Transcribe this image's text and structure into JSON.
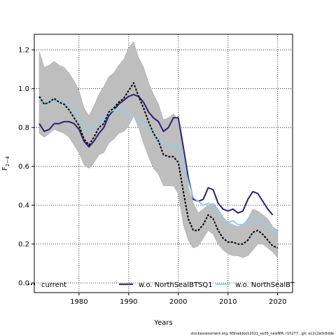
{
  "chart_data": {
    "type": "line",
    "xlabel": "Years",
    "ylabel_main": "F",
    "ylabel_sub": "2−4",
    "xlim": [
      1971,
      2023
    ],
    "ylim": [
      -0.05,
      1.28
    ],
    "xticks": [
      1980,
      1990,
      2000,
      2010,
      2020
    ],
    "yticks": [
      0.0,
      0.2,
      0.4,
      0.6,
      0.8,
      1.0,
      1.2
    ],
    "ytick_labels": [
      "0.0",
      "0.2",
      "0.4",
      "0.6",
      "0.8",
      "1.0",
      "1.2"
    ],
    "grid": true,
    "legend_position": "bottom",
    "legend": [
      {
        "label": "current",
        "key": "current"
      },
      {
        "label": "w.o. NorthSealBTSQ1",
        "key": "btsq1"
      },
      {
        "label": "w.o. NorthSealBT",
        "key": "bt"
      }
    ],
    "colors": {
      "band": "#bebebe",
      "band_edge": "#a6a6a6",
      "current": "#000000",
      "btsq1": "#2e1e7a",
      "bt": "#8ecff0"
    },
    "caption": "stockassessment.org, NShaddock2021_ex05_newNM, r15277 , git: ec2c2a0c6dde",
    "band": {
      "x": [
        1972,
        1973,
        1974,
        1975,
        1976,
        1977,
        1978,
        1979,
        1980,
        1981,
        1982,
        1983,
        1984,
        1985,
        1986,
        1987,
        1988,
        1989,
        1990,
        1991,
        1992,
        1993,
        1994,
        1995,
        1996,
        1997,
        1998,
        1999,
        2000,
        2001,
        2002,
        2003,
        2004,
        2005,
        2006,
        2007,
        2008,
        2009,
        2010,
        2011,
        2012,
        2013,
        2014,
        2015,
        2016,
        2017,
        2018,
        2019,
        2020
      ],
      "upper": [
        1.19,
        1.11,
        1.12,
        1.14,
        1.12,
        1.11,
        1.08,
        1.04,
        0.99,
        0.9,
        0.86,
        0.91,
        0.97,
        1.01,
        1.06,
        1.08,
        1.12,
        1.15,
        1.21,
        1.24,
        1.16,
        1.11,
        1.03,
        0.97,
        0.92,
        0.84,
        0.85,
        0.87,
        0.84,
        0.66,
        0.49,
        0.41,
        0.36,
        0.38,
        0.4,
        0.41,
        0.38,
        0.34,
        0.31,
        0.3,
        0.29,
        0.3,
        0.33,
        0.38,
        0.37,
        0.35,
        0.33,
        0.29,
        0.27
      ],
      "lower": [
        0.77,
        0.75,
        0.77,
        0.79,
        0.78,
        0.77,
        0.75,
        0.71,
        0.67,
        0.61,
        0.59,
        0.62,
        0.66,
        0.67,
        0.72,
        0.74,
        0.77,
        0.78,
        0.81,
        0.86,
        0.8,
        0.72,
        0.65,
        0.59,
        0.56,
        0.5,
        0.5,
        0.5,
        0.46,
        0.3,
        0.22,
        0.18,
        0.19,
        0.23,
        0.27,
        0.25,
        0.2,
        0.17,
        0.15,
        0.14,
        0.14,
        0.13,
        0.14,
        0.17,
        0.2,
        0.2,
        0.18,
        0.16,
        0.13
      ]
    },
    "series": [
      {
        "key": "current",
        "x": [
          1972,
          1973,
          1974,
          1975,
          1976,
          1977,
          1978,
          1979,
          1980,
          1981,
          1982,
          1983,
          1984,
          1985,
          1986,
          1987,
          1988,
          1989,
          1990,
          1991,
          1992,
          1993,
          1994,
          1995,
          1996,
          1997,
          1998,
          1999,
          2000,
          2001,
          2002,
          2003,
          2004,
          2005,
          2006,
          2007,
          2008,
          2009,
          2010,
          2011,
          2012,
          2013,
          2014,
          2015,
          2016,
          2017,
          2018,
          2019,
          2020
        ],
        "values": [
          0.96,
          0.92,
          0.93,
          0.95,
          0.93,
          0.92,
          0.89,
          0.85,
          0.81,
          0.74,
          0.71,
          0.75,
          0.8,
          0.82,
          0.88,
          0.9,
          0.93,
          0.95,
          0.99,
          1.03,
          0.96,
          0.9,
          0.83,
          0.77,
          0.73,
          0.66,
          0.65,
          0.65,
          0.62,
          0.47,
          0.33,
          0.27,
          0.27,
          0.3,
          0.35,
          0.33,
          0.27,
          0.23,
          0.21,
          0.21,
          0.2,
          0.2,
          0.22,
          0.26,
          0.27,
          0.25,
          0.22,
          0.19,
          0.18
        ]
      },
      {
        "key": "btsq1",
        "x": [
          1972,
          1973,
          1974,
          1975,
          1976,
          1977,
          1978,
          1979,
          1980,
          1981,
          1982,
          1983,
          1984,
          1985,
          1986,
          1987,
          1988,
          1989,
          1990,
          1991,
          1992,
          1993,
          1994,
          1995,
          1996,
          1997,
          1998,
          1999,
          2000,
          2001,
          2002,
          2003,
          2004,
          2005,
          2006,
          2007,
          2008,
          2009,
          2010,
          2011,
          2012,
          2013,
          2014,
          2015,
          2016,
          2017,
          2018,
          2019
        ],
        "values": [
          0.82,
          0.78,
          0.79,
          0.82,
          0.82,
          0.83,
          0.83,
          0.82,
          0.79,
          0.73,
          0.7,
          0.73,
          0.77,
          0.8,
          0.86,
          0.89,
          0.92,
          0.94,
          0.96,
          0.97,
          0.96,
          0.93,
          0.88,
          0.85,
          0.83,
          0.78,
          0.8,
          0.85,
          0.85,
          0.7,
          0.54,
          0.43,
          0.42,
          0.43,
          0.49,
          0.48,
          0.41,
          0.38,
          0.37,
          0.38,
          0.36,
          0.37,
          0.43,
          0.47,
          0.46,
          0.42,
          0.38,
          0.35
        ]
      },
      {
        "key": "bt",
        "x": [
          1972,
          1973,
          1974,
          1975,
          1976,
          1977,
          1978,
          1979,
          1980,
          1981,
          1982,
          1983,
          1984,
          1985,
          1986,
          1987,
          1988,
          1989,
          1990,
          1991,
          1992,
          1993,
          1994,
          1995,
          1996,
          1997,
          1998,
          1999,
          2000,
          2001,
          2002,
          2003,
          2004,
          2005,
          2006,
          2007,
          2008,
          2009,
          2010,
          2011,
          2012,
          2013,
          2014,
          2015,
          2016,
          2017,
          2018,
          2019,
          2020
        ],
        "values": [
          0.97,
          0.93,
          0.93,
          0.95,
          0.94,
          0.93,
          0.92,
          0.89,
          0.85,
          0.8,
          0.78,
          0.81,
          0.83,
          0.85,
          0.88,
          0.89,
          0.9,
          0.89,
          0.87,
          0.86,
          0.84,
          0.82,
          0.8,
          0.77,
          0.75,
          0.72,
          0.71,
          0.71,
          0.7,
          0.62,
          0.52,
          0.44,
          0.42,
          0.4,
          0.41,
          0.4,
          0.36,
          0.33,
          0.31,
          0.32,
          0.3,
          0.3,
          0.32,
          0.34,
          0.33,
          0.31,
          0.29,
          0.27,
          0.26
        ]
      }
    ]
  }
}
